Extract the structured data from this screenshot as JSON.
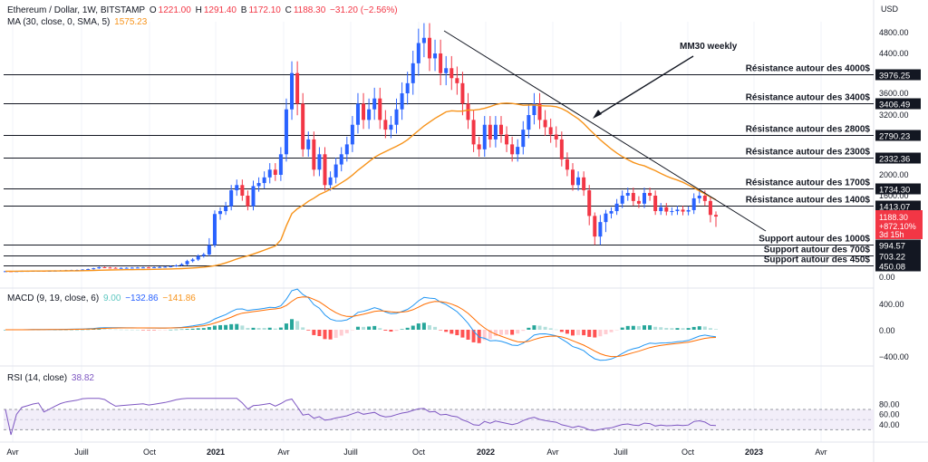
{
  "header": {
    "symbol": "Ethereum / Dollar, 1W, BITSTAMP",
    "o_label": "O",
    "o_value": "1221.00",
    "h_label": "H",
    "h_value": "1291.40",
    "b_label": "B",
    "b_value": "1172.10",
    "c_label": "C",
    "c_value": "1188.30",
    "change": "−31.20 (−2.56%)",
    "ma_label": "MA (30, close, 0, SMA, 5)",
    "ma_value": "1575.23",
    "macd_label": "MACD (9, 19, close, 6)",
    "macd_hist": "9.00",
    "macd_line": "−132.86",
    "macd_signal": "−141.86",
    "rsi_label": "RSI (14, close)",
    "rsi_value": "38.82"
  },
  "colors": {
    "up": "#2962ff",
    "down": "#f23645",
    "ma": "#f7931a",
    "macd": "#2196f3",
    "signal": "#ff6d00",
    "hist_up_strong": "#26a69a",
    "hist_up_weak": "#b2dfdb",
    "hist_down_strong": "#ff5252",
    "hist_down_weak": "#ffcdd2",
    "rsi": "#7e57c2",
    "rsi_band": "#ede7f6"
  },
  "chart_data": {
    "type": "candlestick",
    "price_axis": {
      "unit": "USD",
      "ticks": [
        "4800.00",
        "4400.00",
        "3600.00",
        "3200.00",
        "2000.00",
        "1600.00",
        "0.00"
      ],
      "scale": "log-like"
    },
    "time_axis": {
      "labels": [
        "Avr",
        "Juill",
        "Oct",
        "2021",
        "Avr",
        "Juill",
        "Oct",
        "2022",
        "Avr",
        "Juill",
        "Oct",
        "2023",
        "Avr"
      ],
      "bold": [
        "2021",
        "2022",
        "2023"
      ]
    },
    "levels": [
      {
        "label": "Résistance autour des 4000$",
        "value": 3976.25,
        "tag": "3976.25"
      },
      {
        "label": "Résistance autour des 3400$",
        "value": 3406.49,
        "tag": "3406.49"
      },
      {
        "label": "Résistance autour des 2800$",
        "value": 2790.23,
        "tag": "2790.23"
      },
      {
        "label": "Résistance autour des 2300$",
        "value": 2332.36,
        "tag": "2332.36"
      },
      {
        "label": "Résistance autour des 1700$",
        "value": 1734.3,
        "tag": "1734.30"
      },
      {
        "label": "Résistance autour des 1400$",
        "value": 1413.07,
        "tag": "1413.07"
      },
      {
        "label": "Support autour des 1000$",
        "value": 994.57,
        "tag": "994.57"
      },
      {
        "label": "Support autour des 700$",
        "value": 703.22,
        "tag": "703.22"
      },
      {
        "label": "Support autour des 450$",
        "value": 450.08,
        "tag": "450.08"
      }
    ],
    "current": {
      "price": "1188.30",
      "change": "+872.10%",
      "countdown": "3d 15h"
    },
    "annotation": "MM30 weekly",
    "candles_close": [
      230,
      225,
      232,
      238,
      240,
      243,
      245,
      240,
      244,
      250,
      258,
      265,
      270,
      275,
      290,
      310,
      340,
      380,
      370,
      360,
      350,
      355,
      360,
      365,
      370,
      375,
      372,
      380,
      390,
      400,
      420,
      450,
      480,
      560,
      600,
      690,
      730,
      980,
      1240,
      1300,
      1400,
      1700,
      1800,
      1600,
      1400,
      1780,
      1840,
      1950,
      2100,
      2000,
      2400,
      3300,
      4000,
      3400,
      2500,
      2700,
      2100,
      2400,
      1800,
      1950,
      2200,
      2400,
      2600,
      3000,
      3400,
      3100,
      3300,
      3500,
      3100,
      2900,
      3000,
      3300,
      3600,
      3800,
      4200,
      4600,
      4700,
      4300,
      4400,
      4000,
      4100,
      3900,
      3800,
      3400,
      3100,
      2600,
      2500,
      3000,
      2700,
      3000,
      2800,
      2600,
      2400,
      2550,
      2900,
      3200,
      3400,
      3100,
      2950,
      2800,
      2700,
      2300,
      2100,
      1800,
      1950,
      1700,
      1200,
      1050,
      1150,
      1250,
      1300,
      1450,
      1600,
      1650,
      1500,
      1450,
      1650,
      1600,
      1300,
      1380,
      1290,
      1300,
      1330,
      1290,
      1320,
      1550,
      1600,
      1500,
      1221,
      1188
    ]
  },
  "indicators": {
    "macd_axis_ticks": [
      "400.00",
      "0.00",
      "−400.00"
    ],
    "rsi_axis_ticks": [
      "80.00",
      "60.00",
      "40.00"
    ]
  }
}
